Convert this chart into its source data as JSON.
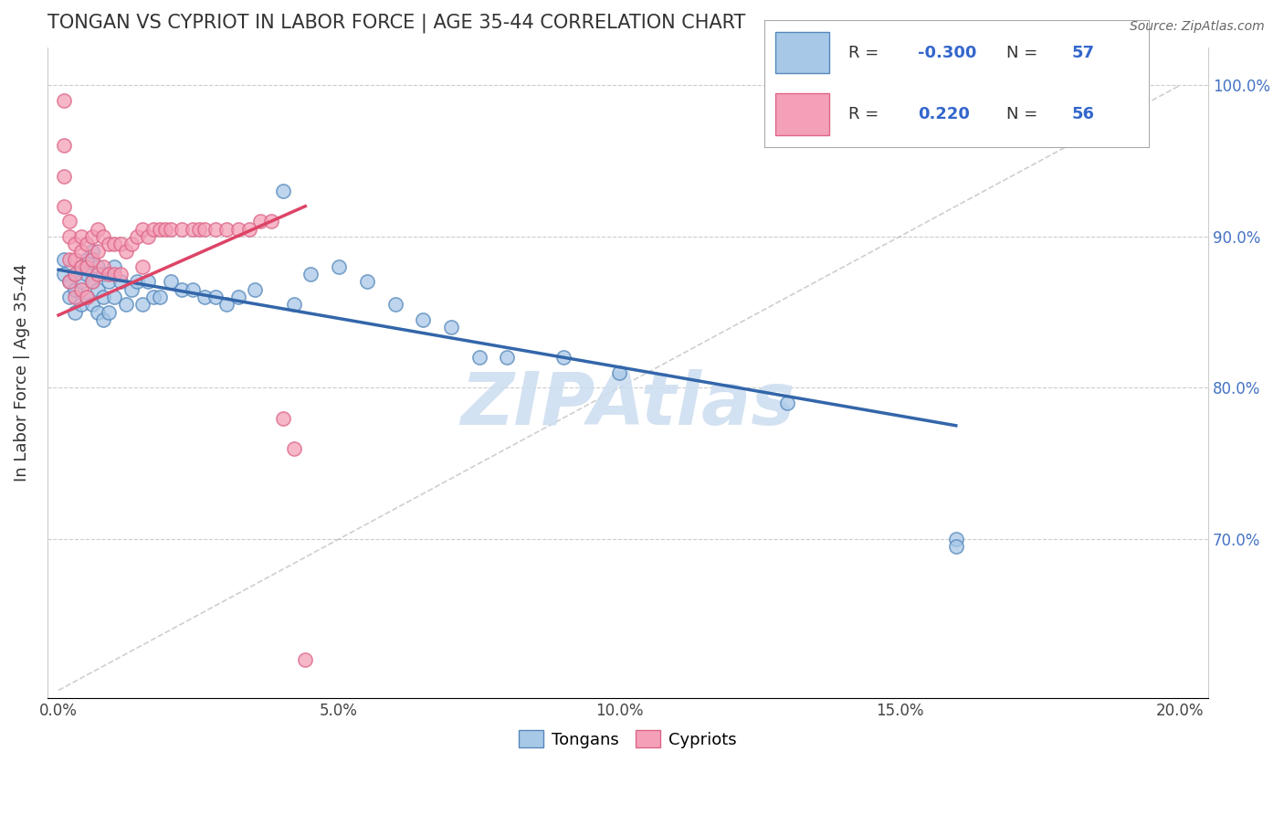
{
  "title": "TONGAN VS CYPRIOT IN LABOR FORCE | AGE 35-44 CORRELATION CHART",
  "source": "Source: ZipAtlas.com",
  "ylabel": "In Labor Force | Age 35-44",
  "x_label_blue": "Tongans",
  "x_label_pink": "Cypriots",
  "xlim": [
    -0.002,
    0.205
  ],
  "ylim": [
    0.595,
    1.025
  ],
  "xticks": [
    0.0,
    0.05,
    0.1,
    0.15,
    0.2
  ],
  "xticklabels": [
    "0.0%",
    "5.0%",
    "10.0%",
    "15.0%",
    "20.0%"
  ],
  "right_yticks": [
    0.7,
    0.8,
    0.9,
    1.0
  ],
  "right_yticklabels": [
    "70.0%",
    "80.0%",
    "90.0%",
    "100.0%"
  ],
  "legend_blue_R": "-0.300",
  "legend_blue_N": "57",
  "legend_pink_R": "0.220",
  "legend_pink_N": "56",
  "blue_color": "#a8c8e8",
  "pink_color": "#f4a0b8",
  "blue_edge_color": "#5588bb",
  "pink_edge_color": "#dd6688",
  "blue_line_color": "#3366aa",
  "pink_line_color": "#dd4466",
  "watermark": "ZIPAtlas",
  "watermark_color": "#ccddeebb",
  "grid_color": "#cccccc",
  "background_color": "#ffffff",
  "blue_scatter_x": [
    0.001,
    0.001,
    0.002,
    0.002,
    0.003,
    0.003,
    0.003,
    0.004,
    0.004,
    0.004,
    0.005,
    0.005,
    0.005,
    0.006,
    0.006,
    0.006,
    0.007,
    0.007,
    0.007,
    0.008,
    0.008,
    0.008,
    0.009,
    0.009,
    0.01,
    0.01,
    0.011,
    0.012,
    0.013,
    0.014,
    0.015,
    0.016,
    0.017,
    0.018,
    0.02,
    0.022,
    0.024,
    0.026,
    0.028,
    0.03,
    0.032,
    0.035,
    0.04,
    0.042,
    0.045,
    0.05,
    0.055,
    0.06,
    0.065,
    0.07,
    0.075,
    0.08,
    0.09,
    0.1,
    0.13,
    0.16,
    0.16
  ],
  "blue_scatter_y": [
    0.875,
    0.885,
    0.87,
    0.86,
    0.875,
    0.865,
    0.85,
    0.88,
    0.87,
    0.855,
    0.885,
    0.875,
    0.86,
    0.89,
    0.87,
    0.855,
    0.88,
    0.865,
    0.85,
    0.875,
    0.86,
    0.845,
    0.87,
    0.85,
    0.88,
    0.86,
    0.87,
    0.855,
    0.865,
    0.87,
    0.855,
    0.87,
    0.86,
    0.86,
    0.87,
    0.865,
    0.865,
    0.86,
    0.86,
    0.855,
    0.86,
    0.865,
    0.93,
    0.855,
    0.875,
    0.88,
    0.87,
    0.855,
    0.845,
    0.84,
    0.82,
    0.82,
    0.82,
    0.81,
    0.79,
    0.7,
    0.695
  ],
  "pink_scatter_x": [
    0.001,
    0.001,
    0.001,
    0.001,
    0.002,
    0.002,
    0.002,
    0.002,
    0.003,
    0.003,
    0.003,
    0.003,
    0.004,
    0.004,
    0.004,
    0.004,
    0.005,
    0.005,
    0.005,
    0.006,
    0.006,
    0.006,
    0.007,
    0.007,
    0.007,
    0.008,
    0.008,
    0.009,
    0.009,
    0.01,
    0.01,
    0.011,
    0.011,
    0.012,
    0.013,
    0.014,
    0.015,
    0.015,
    0.016,
    0.017,
    0.018,
    0.019,
    0.02,
    0.022,
    0.024,
    0.025,
    0.026,
    0.028,
    0.03,
    0.032,
    0.034,
    0.036,
    0.038,
    0.04,
    0.042,
    0.044
  ],
  "pink_scatter_y": [
    0.99,
    0.96,
    0.94,
    0.92,
    0.91,
    0.9,
    0.885,
    0.87,
    0.895,
    0.885,
    0.875,
    0.86,
    0.9,
    0.89,
    0.88,
    0.865,
    0.895,
    0.88,
    0.86,
    0.9,
    0.885,
    0.87,
    0.905,
    0.89,
    0.875,
    0.9,
    0.88,
    0.895,
    0.875,
    0.895,
    0.875,
    0.895,
    0.875,
    0.89,
    0.895,
    0.9,
    0.905,
    0.88,
    0.9,
    0.905,
    0.905,
    0.905,
    0.905,
    0.905,
    0.905,
    0.905,
    0.905,
    0.905,
    0.905,
    0.905,
    0.905,
    0.91,
    0.91,
    0.78,
    0.76,
    0.62
  ],
  "blue_trend_x": [
    0.0,
    0.16
  ],
  "blue_trend_y": [
    0.878,
    0.775
  ],
  "pink_trend_x": [
    0.0,
    0.044
  ],
  "pink_trend_y": [
    0.848,
    0.92
  ],
  "diag_line_x": [
    0.0,
    0.2
  ],
  "diag_line_y": [
    0.6,
    1.0
  ]
}
